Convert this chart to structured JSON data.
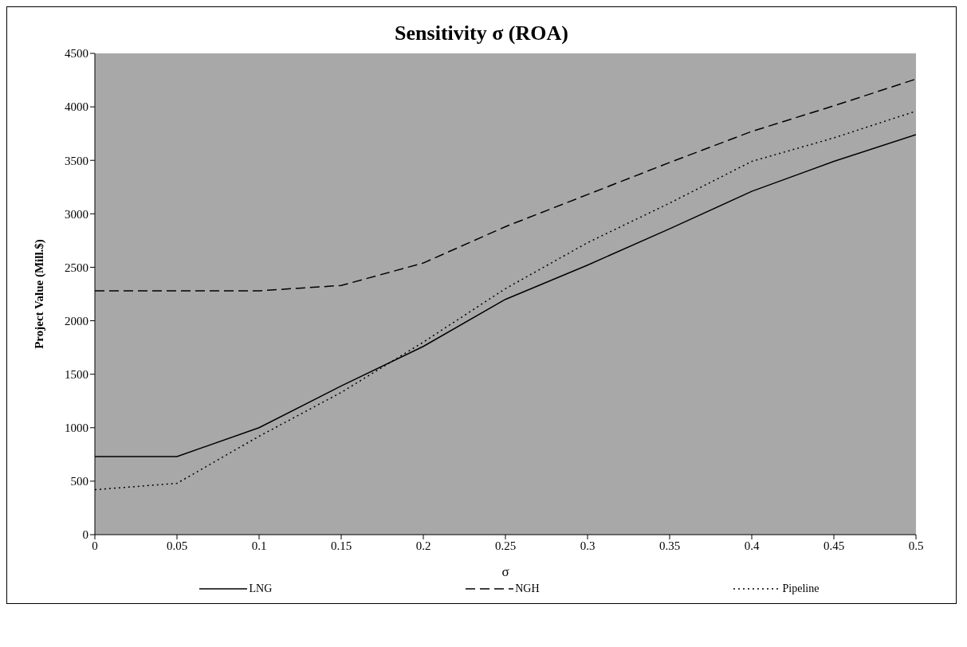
{
  "chart_data": {
    "type": "line",
    "title": "Sensitivity σ (ROA)",
    "xlabel": "σ",
    "ylabel": "Project Value (Mill.$)",
    "x": [
      0,
      0.05,
      0.1,
      0.15,
      0.2,
      0.25,
      0.3,
      0.35,
      0.4,
      0.45,
      0.5
    ],
    "series": [
      {
        "name": "LNG",
        "color": "#000000",
        "line_style": "solid",
        "values": [
          730,
          730,
          1000,
          1390,
          1760,
          2200,
          2520,
          2860,
          3210,
          3490,
          3740
        ]
      },
      {
        "name": "NGH",
        "color": "#000000",
        "line_style": "dashed",
        "values": [
          2280,
          2280,
          2280,
          2330,
          2540,
          2880,
          3180,
          3480,
          3770,
          4010,
          4260
        ]
      },
      {
        "name": "Pipeline",
        "color": "#000000",
        "line_style": "dotted",
        "values": [
          420,
          480,
          920,
          1330,
          1800,
          2300,
          2730,
          3100,
          3490,
          3710,
          3960
        ]
      }
    ],
    "xlim": [
      0,
      0.5
    ],
    "xticks": [
      0,
      0.05,
      0.1,
      0.15,
      0.2,
      0.25,
      0.3,
      0.35,
      0.4,
      0.45,
      0.5
    ],
    "ylim": [
      0,
      4500
    ],
    "yticks": [
      0,
      500,
      1000,
      1500,
      2000,
      2500,
      3000,
      3500,
      4000,
      4500
    ],
    "grid": false,
    "legend": "bottom",
    "marker": "none"
  }
}
